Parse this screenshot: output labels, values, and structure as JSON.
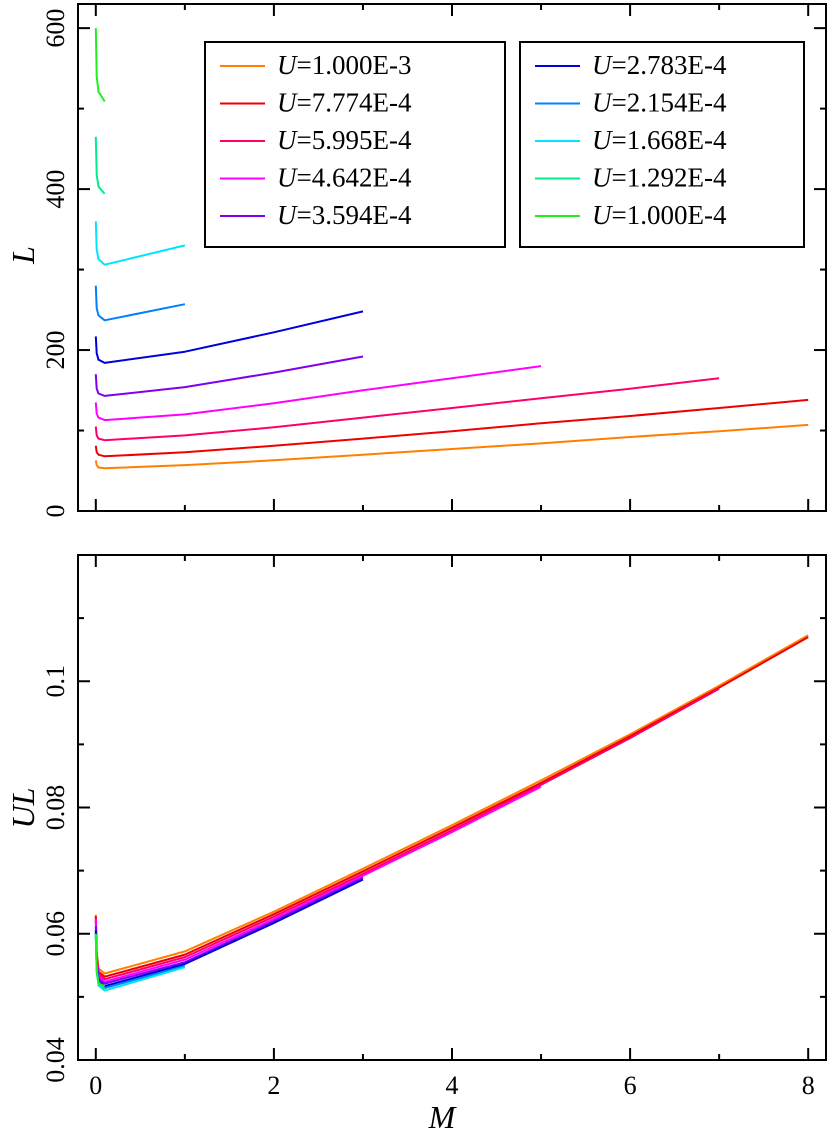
{
  "chart_data": [
    {
      "type": "line",
      "panel": "top",
      "xlabel": "",
      "ylabel": "L",
      "xlim": [
        -0.2,
        8.2
      ],
      "ylim": [
        0,
        630
      ],
      "x_ticks": [
        0,
        2,
        4,
        6,
        8
      ],
      "y_ticks": [
        0,
        200,
        400,
        600
      ],
      "y_tick_labels": [
        "0",
        "200",
        "400",
        "600"
      ],
      "grid": false,
      "legend": [
        {
          "position": "top-center",
          "entries": [
            "1.000E-3",
            "7.774E-4",
            "5.995E-4",
            "4.642E-4",
            "3.594E-4"
          ]
        },
        {
          "position": "top-right",
          "entries": [
            "2.783E-4",
            "2.154E-4",
            "1.668E-4",
            "1.292E-4",
            "1.000E-4"
          ]
        }
      ],
      "series": [
        {
          "name": "1.000E-3",
          "color": "#ff8000",
          "x": [
            0,
            0.01,
            0.03,
            0.1,
            1,
            2,
            3,
            4,
            5,
            6,
            7,
            8
          ],
          "y": [
            63,
            57,
            54,
            53,
            57,
            63,
            70,
            77,
            84,
            92,
            99,
            107
          ]
        },
        {
          "name": "7.774E-4",
          "color": "#ee0000",
          "x": [
            0,
            0.01,
            0.03,
            0.1,
            1,
            2,
            3,
            4,
            5,
            6,
            7,
            8
          ],
          "y": [
            81,
            73,
            70,
            68,
            73,
            81,
            90,
            99,
            109,
            118,
            128,
            138
          ]
        },
        {
          "name": "5.995E-4",
          "color": "#ff0066",
          "x": [
            0,
            0.01,
            0.03,
            0.1,
            1,
            2,
            3,
            4,
            5,
            6,
            7
          ],
          "y": [
            105,
            94,
            90,
            88,
            94,
            104,
            116,
            128,
            140,
            152,
            165
          ]
        },
        {
          "name": "4.642E-4",
          "color": "#ff00ff",
          "x": [
            0,
            0.01,
            0.03,
            0.1,
            1,
            2,
            3,
            4,
            5
          ],
          "y": [
            135,
            121,
            116,
            113,
            120,
            134,
            150,
            165,
            180
          ]
        },
        {
          "name": "3.594E-4",
          "color": "#8000ee",
          "x": [
            0,
            0.01,
            0.03,
            0.1,
            1,
            2,
            3
          ],
          "y": [
            170,
            152,
            146,
            143,
            154,
            172,
            192
          ]
        },
        {
          "name": "2.783E-4",
          "color": "#0000dd",
          "x": [
            0,
            0.01,
            0.03,
            0.1,
            1,
            2,
            3
          ],
          "y": [
            217,
            196,
            188,
            184,
            198,
            222,
            248
          ]
        },
        {
          "name": "2.154E-4",
          "color": "#0080ff",
          "x": [
            0,
            0.01,
            0.03,
            0.1,
            1
          ],
          "y": [
            280,
            252,
            243,
            237,
            257
          ]
        },
        {
          "name": "1.668E-4",
          "color": "#00e5ff",
          "x": [
            0,
            0.01,
            0.03,
            0.1,
            1
          ],
          "y": [
            360,
            325,
            313,
            306,
            330
          ]
        },
        {
          "name": "1.292E-4",
          "color": "#00ee88",
          "x": [
            0,
            0.01,
            0.03,
            0.1
          ],
          "y": [
            465,
            418,
            403,
            394
          ]
        },
        {
          "name": "1.000E-4",
          "color": "#22ee22",
          "x": [
            0,
            0.01,
            0.03,
            0.1
          ],
          "y": [
            600,
            540,
            521,
            509
          ]
        }
      ]
    },
    {
      "type": "line",
      "panel": "bottom",
      "xlabel": "M",
      "ylabel": "UL",
      "xlim": [
        -0.2,
        8.2
      ],
      "ylim": [
        0.04,
        0.12
      ],
      "x_ticks": [
        0,
        2,
        4,
        6,
        8
      ],
      "x_tick_labels": [
        "0",
        "2",
        "4",
        "6",
        "8"
      ],
      "y_ticks": [
        0.04,
        0.06,
        0.08,
        0.1
      ],
      "y_tick_labels": [
        "0.04",
        "0.06",
        "0.08",
        "0.1"
      ],
      "grid": false,
      "series": [
        {
          "name": "1.000E-3",
          "color": "#ff8000",
          "x": [
            0,
            0.01,
            0.03,
            0.1,
            1,
            2,
            3,
            4,
            5,
            6,
            7,
            8
          ],
          "y": [
            0.063,
            0.0572,
            0.0545,
            0.0537,
            0.0572,
            0.0635,
            0.0703,
            0.0772,
            0.0843,
            0.0916,
            0.0993,
            0.1073
          ]
        },
        {
          "name": "7.774E-4",
          "color": "#ee0000",
          "x": [
            0,
            0.01,
            0.03,
            0.1,
            1,
            2,
            3,
            4,
            5,
            6,
            7,
            8
          ],
          "y": [
            0.0628,
            0.0567,
            0.054,
            0.0532,
            0.0567,
            0.0631,
            0.0699,
            0.0768,
            0.0839,
            0.0913,
            0.099,
            0.107
          ]
        },
        {
          "name": "5.995E-4",
          "color": "#ff0066",
          "x": [
            0,
            0.01,
            0.03,
            0.1,
            1,
            2,
            3,
            4,
            5,
            6,
            7
          ],
          "y": [
            0.0625,
            0.0563,
            0.0537,
            0.0528,
            0.0563,
            0.0627,
            0.0695,
            0.0764,
            0.0836,
            0.091,
            0.0988
          ]
        },
        {
          "name": "4.642E-4",
          "color": "#ff00ff",
          "x": [
            0,
            0.01,
            0.03,
            0.1,
            1,
            2,
            3,
            4,
            5
          ],
          "y": [
            0.0623,
            0.0559,
            0.0533,
            0.0524,
            0.0559,
            0.0623,
            0.0692,
            0.0761,
            0.0833
          ]
        },
        {
          "name": "3.594E-4",
          "color": "#8000ee",
          "x": [
            0,
            0.01,
            0.03,
            0.1,
            1,
            2,
            3
          ],
          "y": [
            0.0612,
            0.0555,
            0.0529,
            0.0521,
            0.0555,
            0.062,
            0.0689
          ]
        },
        {
          "name": "2.783E-4",
          "color": "#0000dd",
          "x": [
            0,
            0.01,
            0.03,
            0.1,
            1,
            2,
            3
          ],
          "y": [
            0.0605,
            0.0551,
            0.0525,
            0.0517,
            0.0552,
            0.0617,
            0.0686
          ]
        },
        {
          "name": "2.154E-4",
          "color": "#0080ff",
          "x": [
            0,
            0.01,
            0.03,
            0.1,
            1
          ],
          "y": [
            0.06,
            0.0546,
            0.0522,
            0.0514,
            0.0549
          ]
        },
        {
          "name": "1.668E-4",
          "color": "#00e5ff",
          "x": [
            0,
            0.01,
            0.03,
            0.1,
            1
          ],
          "y": [
            0.0598,
            0.0542,
            0.0518,
            0.051,
            0.0547
          ]
        },
        {
          "name": "1.292E-4",
          "color": "#00ee88",
          "x": [
            0,
            0.01,
            0.03,
            0.1
          ],
          "y": [
            0.0597,
            0.054,
            0.0523,
            0.0512
          ]
        },
        {
          "name": "1.000E-4",
          "color": "#22ee22",
          "x": [
            0,
            0.01,
            0.03,
            0.1
          ],
          "y": [
            0.06,
            0.054,
            0.0521,
            0.0517
          ]
        }
      ]
    }
  ]
}
